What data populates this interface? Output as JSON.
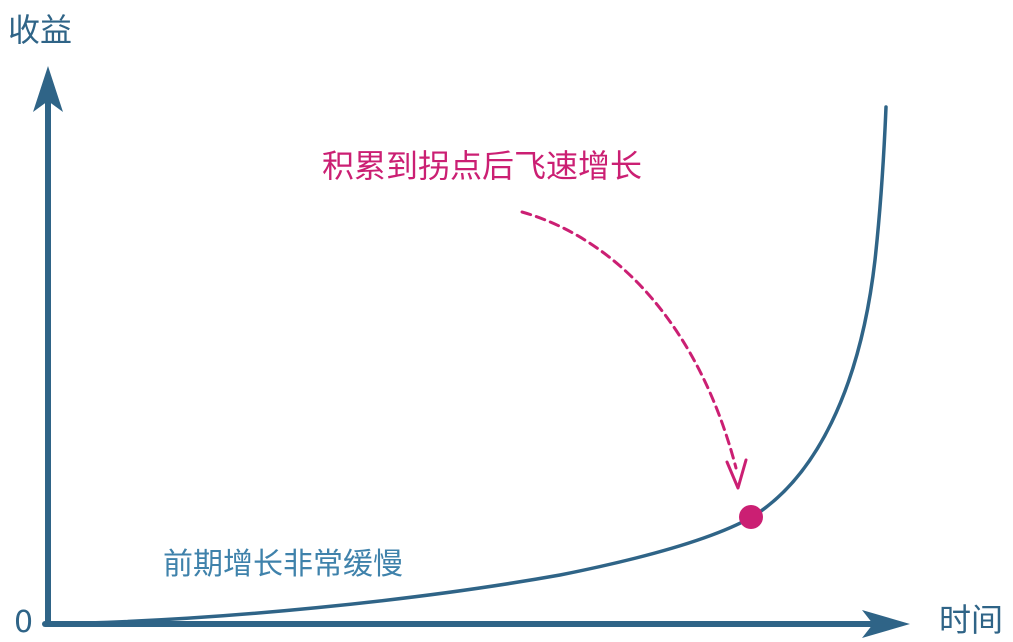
{
  "diagram": {
    "y_axis_label": "收益",
    "x_axis_label": "时间",
    "origin_label": "0",
    "callout_label": "积累到拐点后飞速增长",
    "early_phase_label": "前期增长非常缓慢",
    "colors": {
      "axis": "#2f6487",
      "curve": "#2f6487",
      "callout": "#cb1f73",
      "early_label": "#3f82ab"
    }
  }
}
